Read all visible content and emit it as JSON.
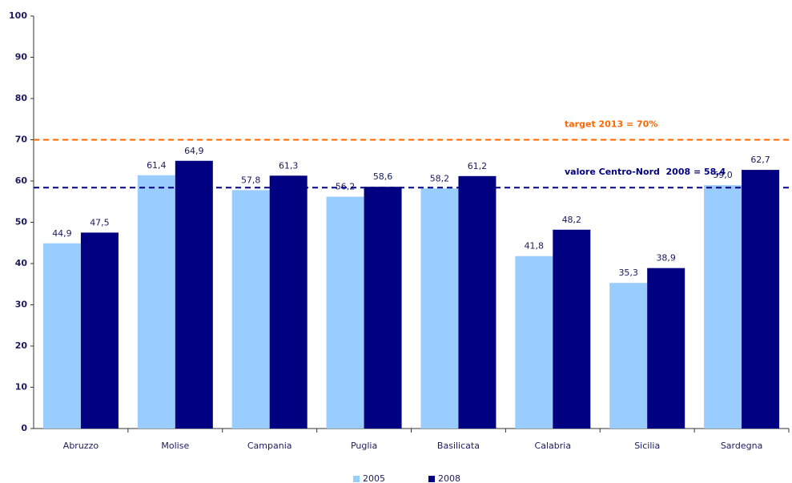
{
  "chart_data": {
    "type": "bar",
    "categories": [
      "Abruzzo",
      "Molise",
      "Campania",
      "Puglia",
      "Basilicata",
      "Calabria",
      "Sicilia",
      "Sardegna"
    ],
    "series": [
      {
        "name": "2005",
        "color": "#99ccff",
        "values": [
          44.9,
          61.4,
          57.8,
          56.2,
          58.2,
          41.8,
          35.3,
          59.0
        ],
        "value_labels": [
          "44,9",
          "61,4",
          "57,8",
          "56,2",
          "58,2",
          "41,8",
          "35,3",
          "59,0"
        ]
      },
      {
        "name": "2008",
        "color": "#000080",
        "values": [
          47.5,
          64.9,
          61.3,
          58.6,
          61.2,
          48.2,
          38.9,
          62.7
        ],
        "value_labels": [
          "47,5",
          "64,9",
          "61,3",
          "58,6",
          "61,2",
          "48,2",
          "38,9",
          "62,7"
        ]
      }
    ],
    "reference_lines": [
      {
        "label": "target 2013 = 70%",
        "value": 70,
        "color": "#ff6600"
      },
      {
        "label": "valore Centro-Nord  2008 = 58,4",
        "value": 58.4,
        "color": "#000080"
      }
    ],
    "ylim": [
      0,
      100
    ],
    "yticks": [
      0,
      10,
      20,
      30,
      40,
      50,
      60,
      70,
      80,
      90,
      100
    ],
    "grid": false,
    "legend": "bottom"
  }
}
